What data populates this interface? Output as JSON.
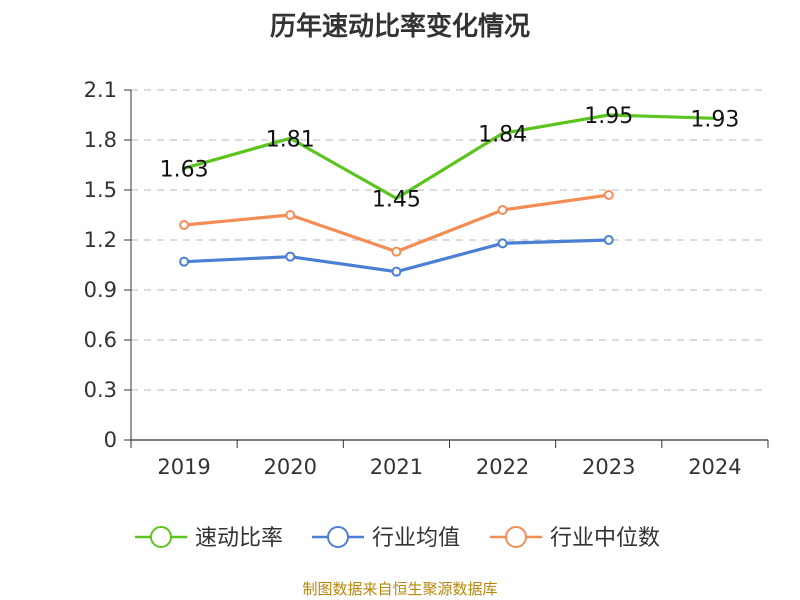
{
  "chart_data": {
    "type": "line",
    "title": "历年速动比率变化情况",
    "categories": [
      "2019",
      "2020",
      "2021",
      "2022",
      "2023",
      "2024"
    ],
    "y_ticks": [
      "0",
      "0.3",
      "0.6",
      "0.9",
      "1.2",
      "1.5",
      "1.8",
      "2.1"
    ],
    "ylim": [
      0,
      2.1
    ],
    "grid": true,
    "legend_position": "bottom",
    "series": [
      {
        "name": "速动比率",
        "color": "#5cc41e",
        "values": [
          1.63,
          1.81,
          1.45,
          1.84,
          1.95,
          1.93
        ],
        "labels": [
          "1.63",
          "1.81",
          "1.45",
          "1.84",
          "1.95",
          "1.93"
        ],
        "marker": "none"
      },
      {
        "name": "行业均值",
        "color": "#4b7fd6",
        "values": [
          1.07,
          1.1,
          1.01,
          1.18,
          1.2,
          null
        ],
        "marker": "circle"
      },
      {
        "name": "行业中位数",
        "color": "#f48c55",
        "values": [
          1.29,
          1.35,
          1.13,
          1.38,
          1.47,
          null
        ],
        "marker": "circle"
      }
    ]
  },
  "source": "制图数据来自恒生聚源数据库"
}
